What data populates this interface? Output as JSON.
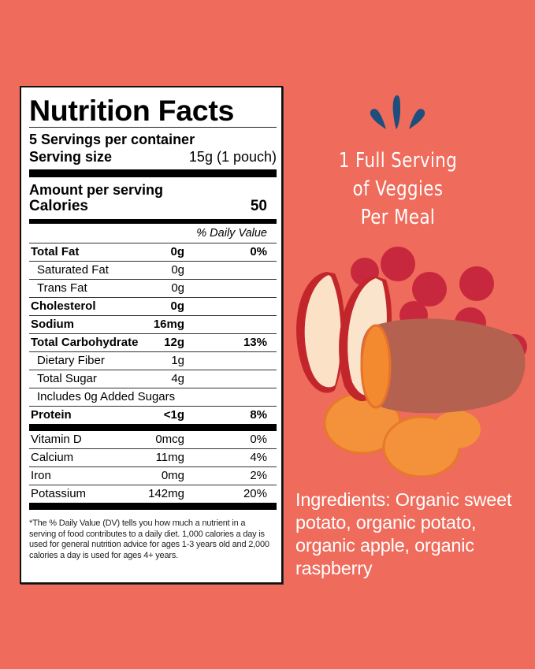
{
  "nutrition_label": {
    "title": "Nutrition Facts",
    "servings_per_container": "5 Servings per container",
    "serving_size_label": "Serving size",
    "serving_size_value": "15g (1 pouch)",
    "amount_per_serving": "Amount per serving",
    "calories_label": "Calories",
    "calories_value": "50",
    "daily_value_header": "% Daily Value",
    "nutrients": [
      {
        "name": "Total Fat",
        "amount": "0g",
        "dv": "0%",
        "bold": true,
        "indent": false
      },
      {
        "name": "Saturated Fat",
        "amount": "0g",
        "dv": "",
        "bold": false,
        "indent": true
      },
      {
        "name": "Trans Fat",
        "amount": "0g",
        "dv": "",
        "bold": false,
        "indent": true
      },
      {
        "name": "Cholesterol",
        "amount": "0g",
        "dv": "",
        "bold": true,
        "indent": false
      },
      {
        "name": "Sodium",
        "amount": "16mg",
        "dv": "",
        "bold": true,
        "indent": false
      },
      {
        "name": "Total Carbohydrate",
        "amount": "12g",
        "dv": "13%",
        "bold": true,
        "indent": false
      },
      {
        "name": "Dietary Fiber",
        "amount": "1g",
        "dv": "",
        "bold": false,
        "indent": true
      },
      {
        "name": "Total Sugar",
        "amount": "4g",
        "dv": "",
        "bold": false,
        "indent": true
      },
      {
        "name": "Includes 0g Added Sugars",
        "amount": "",
        "dv": "",
        "bold": false,
        "indent": true
      },
      {
        "name": "Protein",
        "amount": "<1g",
        "dv": "8%",
        "bold": true,
        "indent": false
      }
    ],
    "vitamins": [
      {
        "name": "Vitamin D",
        "amount": "0mcg",
        "dv": "0%"
      },
      {
        "name": "Calcium",
        "amount": "11mg",
        "dv": "4%"
      },
      {
        "name": "Iron",
        "amount": "0mg",
        "dv": "2%"
      },
      {
        "name": "Potassium",
        "amount": "142mg",
        "dv": "20%"
      }
    ],
    "footnote": "*The % Daily Value (DV) tells you how much a nutrient in a serving of food contributes to a daily diet. 1,000 calories a day is used for general nutrition advice for ages 1-3 years old and 2,000 calories a day is used for ages 4+ years."
  },
  "tagline": {
    "line1": "1 Full Serving",
    "line2": "of Veggies",
    "line3": "Per Meal"
  },
  "ingredients": "Ingredients: Organic sweet potato, organic potato, organic apple, organic raspberry",
  "colors": {
    "background": "#ef6b5b",
    "drops": "#1d4e7e",
    "text_light": "#ffffff"
  },
  "icons": [
    "splash-drops-icon"
  ]
}
